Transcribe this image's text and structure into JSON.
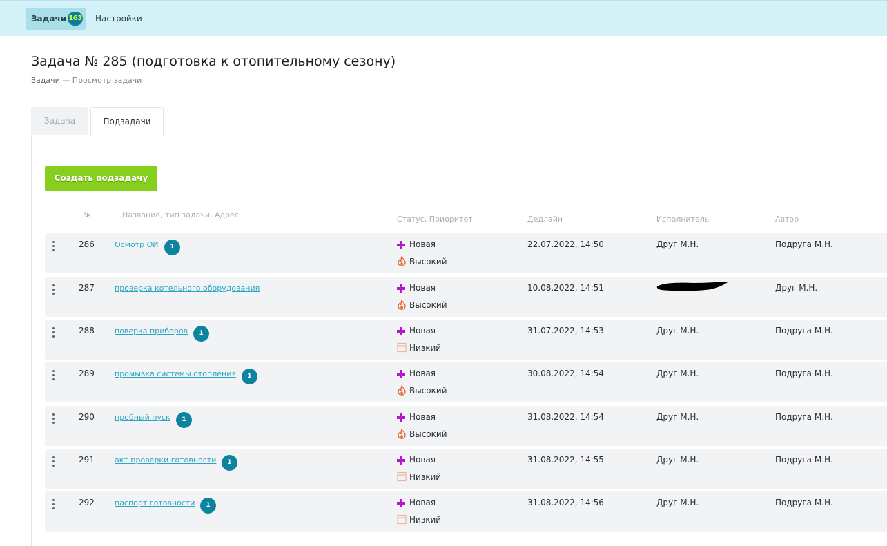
{
  "nav": {
    "tasks_label": "Задачи",
    "tasks_count": "163",
    "settings_label": "Настройки"
  },
  "page": {
    "title": "Задача № 285 (подготовка к отопительному сезону)",
    "breadcrumb_link": "Задачи",
    "breadcrumb_separator": "—",
    "breadcrumb_current": "Просмотр задачи"
  },
  "tabs": [
    {
      "label": "Задача",
      "active": false
    },
    {
      "label": "Подзадачи",
      "active": true
    }
  ],
  "create_button_label": "Создать подзадачу",
  "table": {
    "headers": {
      "num": "№",
      "name": "Название, тип задачи, Адрес",
      "status": "Статус, Приоритет",
      "deadline": "Дедлайн",
      "executor": "Исполнитель",
      "author": "Автор"
    },
    "rows": [
      {
        "num": "286",
        "name": "Осмотр ОИ",
        "count": "1",
        "status": "Новая",
        "priority": "Высокий",
        "priority_icon": "fire-icon",
        "deadline": "22.07.2022, 14:50",
        "executor": "Друг М.Н.",
        "author": "Подруга М.Н."
      },
      {
        "num": "287",
        "name": "проверка котельного оборудования",
        "count": "",
        "status": "Новая",
        "priority": "Высокий",
        "priority_icon": "fire-icon",
        "deadline": "10.08.2022, 14:51",
        "executor": "",
        "executor_redacted": true,
        "author": "Друг М.Н."
      },
      {
        "num": "288",
        "name": "поверка приборов",
        "count": "1",
        "status": "Новая",
        "priority": "Низкий",
        "priority_icon": "box-icon",
        "deadline": "31.07.2022, 14:53",
        "executor": "Друг М.Н.",
        "author": "Подруга М.Н."
      },
      {
        "num": "289",
        "name": "промывка системы отопления",
        "count": "1",
        "status": "Новая",
        "priority": "Высокий",
        "priority_icon": "fire-icon",
        "deadline": "30.08.2022, 14:54",
        "executor": "Друг М.Н.",
        "author": "Подруга М.Н."
      },
      {
        "num": "290",
        "name": "пробный пуск",
        "count": "1",
        "status": "Новая",
        "priority": "Высокий",
        "priority_icon": "fire-icon",
        "deadline": "31.08.2022, 14:54",
        "executor": "Друг М.Н.",
        "author": "Подруга М.Н."
      },
      {
        "num": "291",
        "name": "акт проверки готовности",
        "count": "1",
        "status": "Новая",
        "priority": "Низкий",
        "priority_icon": "box-icon",
        "deadline": "31.08.2022, 14:55",
        "executor": "Друг М.Н.",
        "author": "Подруга М.Н."
      },
      {
        "num": "292",
        "name": "паспорт готовности",
        "count": "1",
        "status": "Новая",
        "priority": "Низкий",
        "priority_icon": "box-icon",
        "deadline": "31.08.2022, 14:56",
        "executor": "Друг М.Н.",
        "author": "Подруга М.Н."
      }
    ]
  },
  "colors": {
    "topbar": "#d4f1f7",
    "accent_link": "#2aa6c5",
    "badge": "#0c84a0",
    "create_button": "#86cf1c",
    "status_new": "#b418cc",
    "priority_high": "#e8673a",
    "priority_low": "#f3b29a"
  }
}
